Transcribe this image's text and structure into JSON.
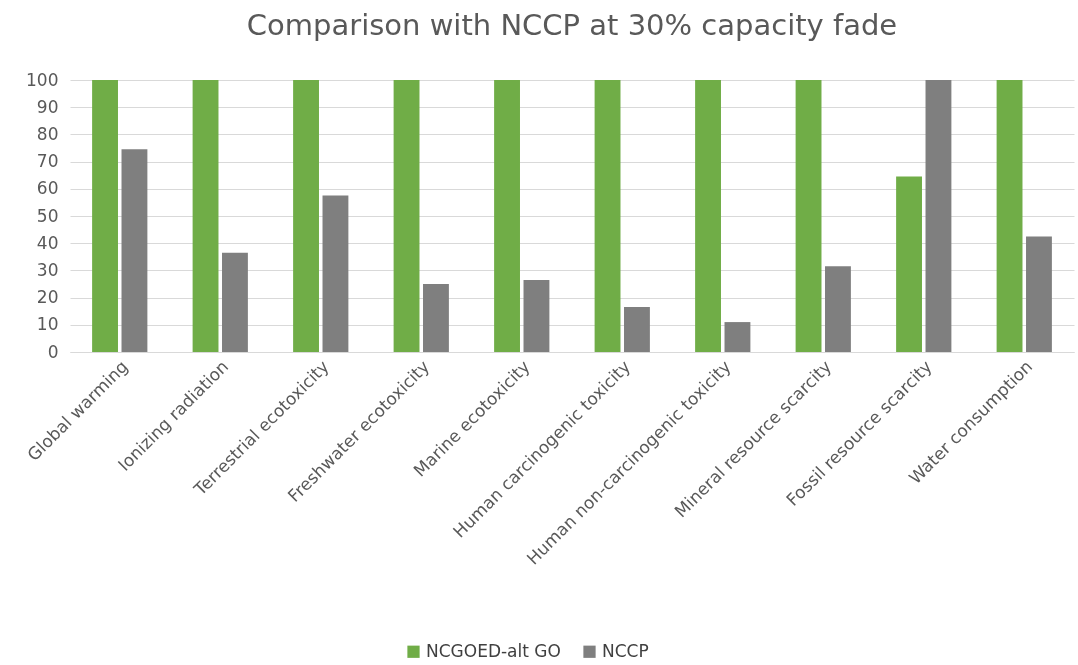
{
  "chart_data": {
    "type": "bar",
    "title": "Comparison with NCCP at 30% capacity fade",
    "categories": [
      "Global warming",
      "Ionizing radiation",
      "Terrestrial ecotoxicity",
      "Freshwater ecotoxicity",
      "Marine ecotoxicity",
      "Human carcinogenic toxicity",
      "Human non-carcinogenic toxicity",
      "Mineral resource scarcity",
      "Fossil resource scarcity",
      "Water consumption"
    ],
    "series": [
      {
        "name": "NCGOED-alt GO",
        "color": "#70ad47",
        "values": [
          100,
          100,
          100,
          100,
          100,
          100,
          100,
          100,
          64.5,
          100
        ]
      },
      {
        "name": "NCCP",
        "color": "#7f7f7f",
        "values": [
          74.5,
          36.5,
          57.5,
          25,
          26.5,
          16.5,
          11,
          31.5,
          100,
          42.5
        ]
      }
    ],
    "ylim": [
      0,
      100
    ],
    "yticks": [
      0,
      10,
      20,
      30,
      40,
      50,
      60,
      70,
      80,
      90,
      100
    ],
    "grid": "y",
    "legend": "bottom"
  }
}
